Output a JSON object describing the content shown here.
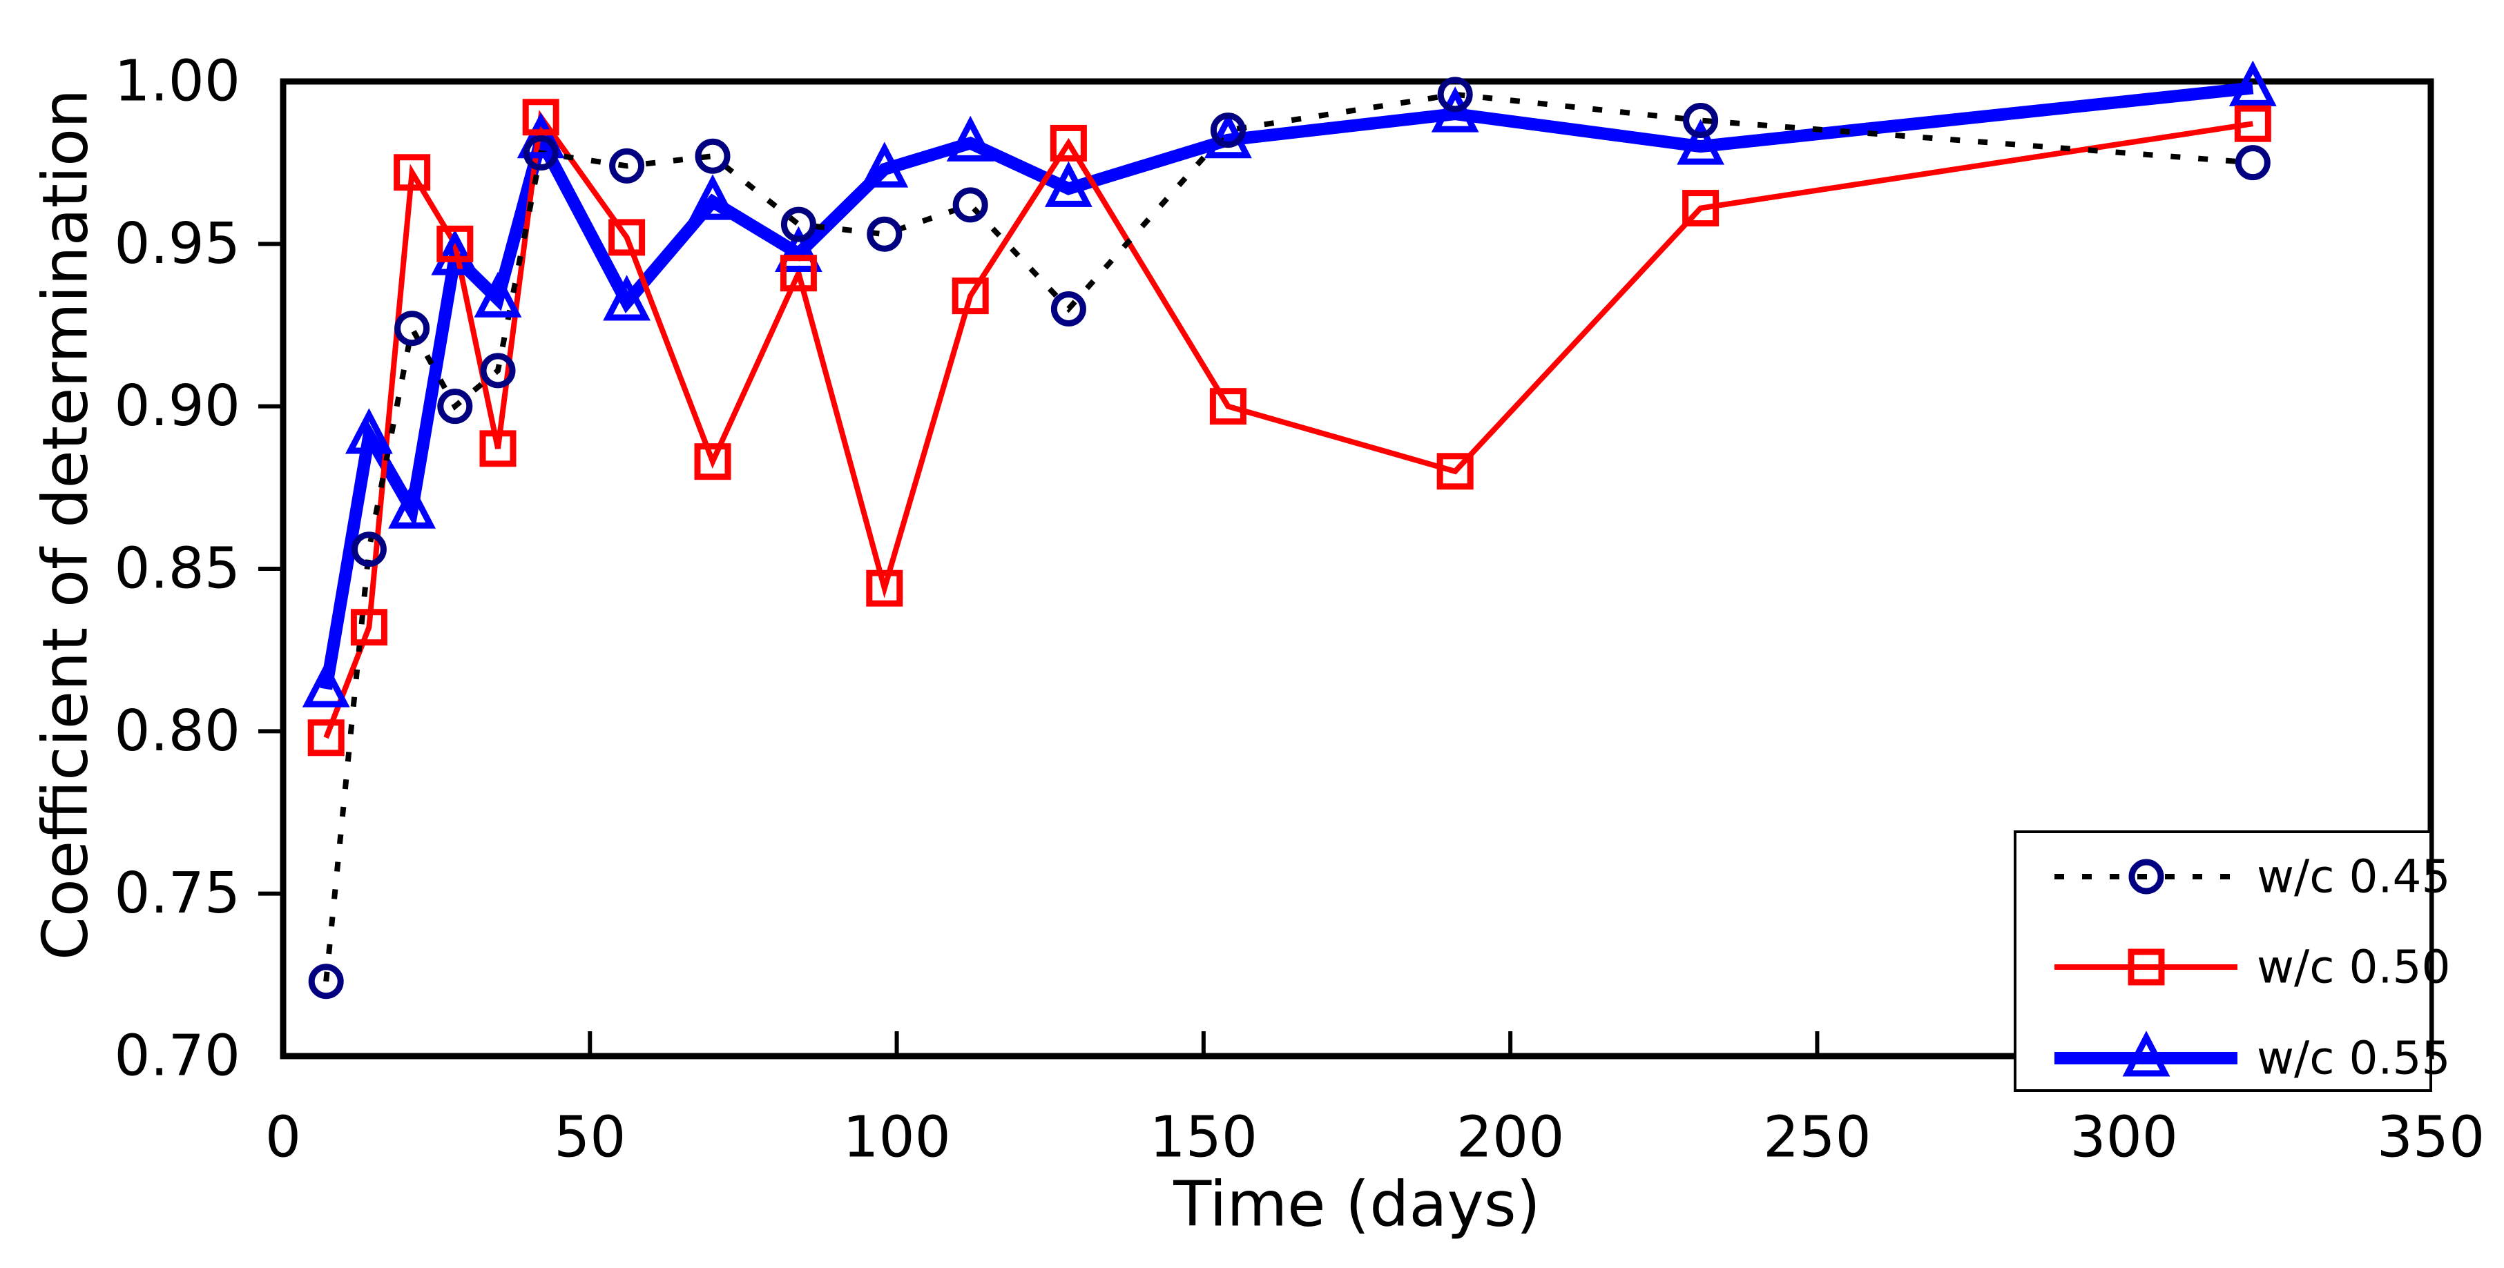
{
  "chart_data": {
    "type": "line",
    "title": "",
    "xlabel": "Time (days)",
    "ylabel": "Coefficient of determination",
    "xlim": [
      0,
      350
    ],
    "ylim": [
      0.7,
      1.0
    ],
    "grid": false,
    "legend_position": "lower right",
    "x_ticks": [
      0,
      50,
      100,
      150,
      200,
      250,
      300,
      350
    ],
    "x_tick_labels": [
      "0",
      "50",
      "100",
      "150",
      "200",
      "250",
      "300",
      "350"
    ],
    "y_ticks": [
      1.0,
      0.95,
      0.9,
      0.85,
      0.8,
      0.75,
      0.7
    ],
    "y_tick_labels": [
      "1.00",
      "0.95",
      "0.90",
      "0.85",
      "0.80",
      "0.75",
      "0.70"
    ],
    "x": [
      7,
      14,
      21,
      28,
      35,
      42,
      56,
      70,
      84,
      98,
      112,
      128,
      154,
      191,
      231,
      321
    ],
    "series": [
      {
        "name": "w/c 0.45",
        "marker": "circle",
        "marker_color": "#000080",
        "line_color": "#000000",
        "line_style": "dotted",
        "line_width": 8,
        "values": [
          0.723,
          0.856,
          0.924,
          0.9,
          0.911,
          0.978,
          0.974,
          0.977,
          0.956,
          0.953,
          0.962,
          0.93,
          0.985,
          0.996,
          0.988,
          0.975
        ]
      },
      {
        "name": "w/c 0.50",
        "marker": "square",
        "marker_color": "#ff0000",
        "line_color": "#ff0000",
        "line_style": "solid",
        "line_width": 8,
        "values": [
          0.798,
          0.832,
          0.972,
          0.95,
          0.887,
          0.989,
          0.952,
          0.883,
          0.941,
          0.844,
          0.934,
          0.981,
          0.9,
          0.88,
          0.961,
          0.987
        ]
      },
      {
        "name": "w/c 0.55",
        "marker": "triangle",
        "marker_color": "#0000ff",
        "line_color": "#0000ff",
        "line_style": "solid",
        "line_width": 18,
        "values": [
          0.813,
          0.891,
          0.868,
          0.946,
          0.933,
          0.982,
          0.932,
          0.963,
          0.947,
          0.973,
          0.981,
          0.967,
          0.982,
          0.99,
          0.98,
          0.998
        ]
      }
    ],
    "colors": {
      "frame": "#000000",
      "background": "#ffffff",
      "navy_marker": "#000080",
      "red_series": "#ff0000",
      "blue_series": "#0000ff"
    }
  }
}
